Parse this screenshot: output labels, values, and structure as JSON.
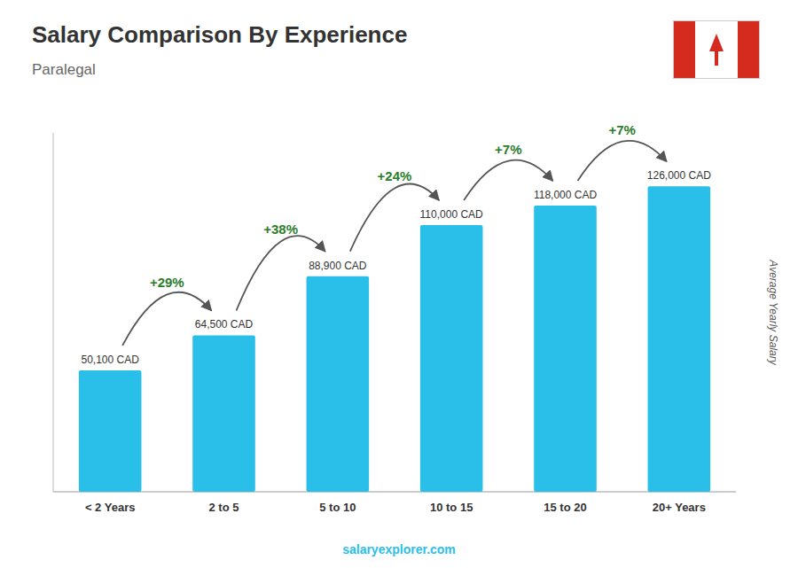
{
  "chart_data": {
    "type": "bar",
    "title": "Salary Comparison By Experience",
    "subtitle": "Paralegal",
    "ylabel": "Average Yearly Salary",
    "categories": [
      "< 2 Years",
      "2 to 5",
      "5 to 10",
      "10 to 15",
      "15 to 20",
      "20+ Years"
    ],
    "values": [
      50100,
      64500,
      88900,
      110000,
      118000,
      126000
    ],
    "value_labels": [
      "50,100 CAD",
      "64,500 CAD",
      "88,900 CAD",
      "110,000 CAD",
      "118,000 CAD",
      "126,000 CAD"
    ],
    "data_labels": true,
    "annotations": [
      "+29%",
      "+38%",
      "+24%",
      "+7%",
      "+7%"
    ],
    "footer": "salaryexplorer.com",
    "color": "#29bfe8",
    "ylim": [
      0,
      148000
    ],
    "tick_labels": "x",
    "grid": false
  }
}
